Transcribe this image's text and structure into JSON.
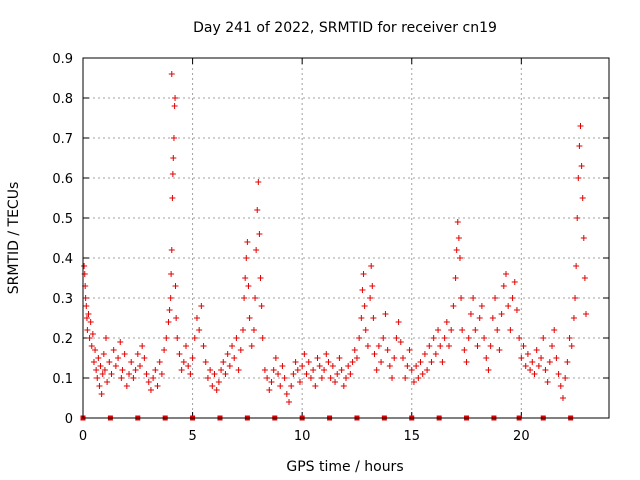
{
  "chart_data": {
    "type": "scatter",
    "title": "Day 241 of 2022, SRMTID for receiver cn19",
    "xlabel": "GPS time / hours",
    "ylabel": "SRMTID / TECUs",
    "xlim": [
      0,
      24
    ],
    "ylim": [
      0,
      0.9
    ],
    "xticks": [
      0,
      5,
      10,
      15,
      20
    ],
    "yticks": [
      0,
      0.1,
      0.2,
      0.3,
      0.4,
      0.5,
      0.6,
      0.7,
      0.8,
      0.9
    ],
    "xtick_labels": [
      "0",
      "5",
      "10",
      "15",
      "20"
    ],
    "ytick_labels": [
      "0",
      "0.1",
      "0.2",
      "0.3",
      "0.4",
      "0.5",
      "0.6",
      "0.7",
      "0.8",
      "0.9"
    ],
    "grid": true,
    "marker": "+",
    "color": "#e00000",
    "baseline_markers_x": [
      0,
      1.25,
      2.5,
      3.75,
      5.0,
      6.25,
      7.5,
      8.75,
      10.0,
      11.25,
      12.5,
      13.75,
      15.0,
      16.25,
      17.5,
      18.75,
      19.9,
      21.0,
      22.25
    ],
    "series": [
      {
        "name": "SRMTID",
        "points": [
          [
            0.05,
            0.38
          ],
          [
            0.08,
            0.36
          ],
          [
            0.1,
            0.33
          ],
          [
            0.12,
            0.3
          ],
          [
            0.15,
            0.28
          ],
          [
            0.18,
            0.25
          ],
          [
            0.2,
            0.22
          ],
          [
            0.25,
            0.26
          ],
          [
            0.3,
            0.2
          ],
          [
            0.35,
            0.24
          ],
          [
            0.4,
            0.18
          ],
          [
            0.45,
            0.21
          ],
          [
            0.5,
            0.14
          ],
          [
            0.55,
            0.17
          ],
          [
            0.6,
            0.12
          ],
          [
            0.65,
            0.1
          ],
          [
            0.7,
            0.15
          ],
          [
            0.75,
            0.08
          ],
          [
            0.8,
            0.13
          ],
          [
            0.85,
            0.06
          ],
          [
            0.9,
            0.11
          ],
          [
            0.95,
            0.16
          ],
          [
            1.0,
            0.12
          ],
          [
            1.05,
            0.2
          ],
          [
            1.1,
            0.09
          ],
          [
            1.2,
            0.14
          ],
          [
            1.3,
            0.11
          ],
          [
            1.4,
            0.17
          ],
          [
            1.5,
            0.13
          ],
          [
            1.6,
            0.15
          ],
          [
            1.7,
            0.19
          ],
          [
            1.75,
            0.1
          ],
          [
            1.8,
            0.12
          ],
          [
            1.9,
            0.16
          ],
          [
            2.0,
            0.08
          ],
          [
            2.1,
            0.11
          ],
          [
            2.2,
            0.14
          ],
          [
            2.3,
            0.1
          ],
          [
            2.4,
            0.12
          ],
          [
            2.5,
            0.16
          ],
          [
            2.6,
            0.13
          ],
          [
            2.7,
            0.18
          ],
          [
            2.8,
            0.15
          ],
          [
            2.9,
            0.11
          ],
          [
            3.0,
            0.09
          ],
          [
            3.1,
            0.07
          ],
          [
            3.2,
            0.1
          ],
          [
            3.3,
            0.12
          ],
          [
            3.4,
            0.08
          ],
          [
            3.5,
            0.14
          ],
          [
            3.6,
            0.11
          ],
          [
            3.7,
            0.17
          ],
          [
            3.8,
            0.2
          ],
          [
            3.9,
            0.24
          ],
          [
            3.95,
            0.27
          ],
          [
            4.0,
            0.3
          ],
          [
            4.02,
            0.36
          ],
          [
            4.05,
            0.42
          ],
          [
            4.08,
            0.55
          ],
          [
            4.1,
            0.61
          ],
          [
            4.12,
            0.65
          ],
          [
            4.15,
            0.7
          ],
          [
            4.18,
            0.78
          ],
          [
            4.2,
            0.8
          ],
          [
            4.05,
            0.86
          ],
          [
            4.22,
            0.33
          ],
          [
            4.25,
            0.25
          ],
          [
            4.3,
            0.2
          ],
          [
            4.4,
            0.16
          ],
          [
            4.5,
            0.12
          ],
          [
            4.6,
            0.14
          ],
          [
            4.7,
            0.18
          ],
          [
            4.8,
            0.13
          ],
          [
            4.9,
            0.11
          ],
          [
            5.0,
            0.15
          ],
          [
            5.1,
            0.2
          ],
          [
            5.2,
            0.25
          ],
          [
            5.3,
            0.22
          ],
          [
            5.4,
            0.28
          ],
          [
            5.5,
            0.18
          ],
          [
            5.6,
            0.14
          ],
          [
            5.7,
            0.1
          ],
          [
            5.8,
            0.12
          ],
          [
            5.9,
            0.08
          ],
          [
            6.0,
            0.11
          ],
          [
            6.1,
            0.07
          ],
          [
            6.2,
            0.09
          ],
          [
            6.3,
            0.12
          ],
          [
            6.4,
            0.14
          ],
          [
            6.5,
            0.11
          ],
          [
            6.6,
            0.16
          ],
          [
            6.7,
            0.13
          ],
          [
            6.8,
            0.18
          ],
          [
            6.9,
            0.15
          ],
          [
            7.0,
            0.2
          ],
          [
            7.1,
            0.12
          ],
          [
            7.2,
            0.17
          ],
          [
            7.3,
            0.22
          ],
          [
            7.35,
            0.3
          ],
          [
            7.4,
            0.35
          ],
          [
            7.45,
            0.4
          ],
          [
            7.5,
            0.44
          ],
          [
            7.55,
            0.33
          ],
          [
            7.6,
            0.25
          ],
          [
            7.7,
            0.18
          ],
          [
            7.8,
            0.22
          ],
          [
            7.85,
            0.3
          ],
          [
            7.9,
            0.42
          ],
          [
            7.95,
            0.52
          ],
          [
            8.0,
            0.59
          ],
          [
            8.05,
            0.46
          ],
          [
            8.1,
            0.35
          ],
          [
            8.15,
            0.28
          ],
          [
            8.2,
            0.2
          ],
          [
            8.3,
            0.12
          ],
          [
            8.4,
            0.1
          ],
          [
            8.5,
            0.07
          ],
          [
            8.6,
            0.09
          ],
          [
            8.7,
            0.12
          ],
          [
            8.8,
            0.15
          ],
          [
            8.9,
            0.11
          ],
          [
            9.0,
            0.08
          ],
          [
            9.1,
            0.13
          ],
          [
            9.2,
            0.1
          ],
          [
            9.3,
            0.06
          ],
          [
            9.4,
            0.04
          ],
          [
            9.5,
            0.08
          ],
          [
            9.6,
            0.11
          ],
          [
            9.7,
            0.14
          ],
          [
            9.8,
            0.12
          ],
          [
            9.9,
            0.09
          ],
          [
            10.0,
            0.13
          ],
          [
            10.1,
            0.16
          ],
          [
            10.2,
            0.11
          ],
          [
            10.3,
            0.14
          ],
          [
            10.4,
            0.1
          ],
          [
            10.5,
            0.12
          ],
          [
            10.6,
            0.08
          ],
          [
            10.7,
            0.15
          ],
          [
            10.8,
            0.13
          ],
          [
            10.9,
            0.1
          ],
          [
            11.0,
            0.12
          ],
          [
            11.1,
            0.16
          ],
          [
            11.2,
            0.14
          ],
          [
            11.3,
            0.1
          ],
          [
            11.4,
            0.13
          ],
          [
            11.5,
            0.09
          ],
          [
            11.6,
            0.11
          ],
          [
            11.7,
            0.15
          ],
          [
            11.8,
            0.12
          ],
          [
            11.9,
            0.08
          ],
          [
            12.0,
            0.1
          ],
          [
            12.1,
            0.13
          ],
          [
            12.2,
            0.11
          ],
          [
            12.3,
            0.14
          ],
          [
            12.4,
            0.17
          ],
          [
            12.5,
            0.15
          ],
          [
            12.6,
            0.2
          ],
          [
            12.7,
            0.25
          ],
          [
            12.75,
            0.32
          ],
          [
            12.8,
            0.36
          ],
          [
            12.85,
            0.28
          ],
          [
            12.9,
            0.22
          ],
          [
            13.0,
            0.18
          ],
          [
            13.1,
            0.3
          ],
          [
            13.15,
            0.38
          ],
          [
            13.2,
            0.33
          ],
          [
            13.25,
            0.25
          ],
          [
            13.3,
            0.16
          ],
          [
            13.4,
            0.12
          ],
          [
            13.5,
            0.18
          ],
          [
            13.6,
            0.14
          ],
          [
            13.7,
            0.2
          ],
          [
            13.8,
            0.26
          ],
          [
            13.9,
            0.17
          ],
          [
            14.0,
            0.13
          ],
          [
            14.1,
            0.1
          ],
          [
            14.2,
            0.15
          ],
          [
            14.3,
            0.2
          ],
          [
            14.4,
            0.24
          ],
          [
            14.5,
            0.19
          ],
          [
            14.6,
            0.15
          ],
          [
            14.7,
            0.1
          ],
          [
            14.8,
            0.13
          ],
          [
            14.9,
            0.17
          ],
          [
            15.0,
            0.12
          ],
          [
            15.1,
            0.09
          ],
          [
            15.2,
            0.13
          ],
          [
            15.3,
            0.1
          ],
          [
            15.4,
            0.14
          ],
          [
            15.5,
            0.11
          ],
          [
            15.6,
            0.16
          ],
          [
            15.7,
            0.12
          ],
          [
            15.8,
            0.18
          ],
          [
            15.9,
            0.14
          ],
          [
            16.0,
            0.2
          ],
          [
            16.1,
            0.16
          ],
          [
            16.2,
            0.22
          ],
          [
            16.3,
            0.18
          ],
          [
            16.4,
            0.14
          ],
          [
            16.5,
            0.2
          ],
          [
            16.6,
            0.24
          ],
          [
            16.7,
            0.18
          ],
          [
            16.8,
            0.22
          ],
          [
            16.9,
            0.28
          ],
          [
            17.0,
            0.35
          ],
          [
            17.05,
            0.42
          ],
          [
            17.1,
            0.49
          ],
          [
            17.15,
            0.45
          ],
          [
            17.2,
            0.4
          ],
          [
            17.25,
            0.3
          ],
          [
            17.3,
            0.22
          ],
          [
            17.4,
            0.17
          ],
          [
            17.5,
            0.14
          ],
          [
            17.6,
            0.2
          ],
          [
            17.7,
            0.26
          ],
          [
            17.8,
            0.3
          ],
          [
            17.9,
            0.22
          ],
          [
            18.0,
            0.18
          ],
          [
            18.1,
            0.25
          ],
          [
            18.2,
            0.28
          ],
          [
            18.3,
            0.2
          ],
          [
            18.4,
            0.15
          ],
          [
            18.5,
            0.12
          ],
          [
            18.6,
            0.18
          ],
          [
            18.7,
            0.25
          ],
          [
            18.8,
            0.3
          ],
          [
            18.9,
            0.22
          ],
          [
            19.0,
            0.17
          ],
          [
            19.1,
            0.26
          ],
          [
            19.2,
            0.33
          ],
          [
            19.3,
            0.36
          ],
          [
            19.4,
            0.28
          ],
          [
            19.5,
            0.22
          ],
          [
            19.6,
            0.3
          ],
          [
            19.7,
            0.34
          ],
          [
            19.8,
            0.27
          ],
          [
            19.9,
            0.2
          ],
          [
            20.0,
            0.15
          ],
          [
            20.1,
            0.18
          ],
          [
            20.2,
            0.13
          ],
          [
            20.3,
            0.16
          ],
          [
            20.4,
            0.12
          ],
          [
            20.5,
            0.14
          ],
          [
            20.6,
            0.11
          ],
          [
            20.7,
            0.17
          ],
          [
            20.8,
            0.13
          ],
          [
            20.9,
            0.15
          ],
          [
            21.0,
            0.2
          ],
          [
            21.1,
            0.12
          ],
          [
            21.2,
            0.09
          ],
          [
            21.3,
            0.14
          ],
          [
            21.4,
            0.18
          ],
          [
            21.5,
            0.22
          ],
          [
            21.6,
            0.15
          ],
          [
            21.7,
            0.11
          ],
          [
            21.8,
            0.08
          ],
          [
            21.9,
            0.05
          ],
          [
            22.0,
            0.1
          ],
          [
            22.1,
            0.14
          ],
          [
            22.2,
            0.2
          ],
          [
            22.3,
            0.18
          ],
          [
            22.4,
            0.25
          ],
          [
            22.45,
            0.3
          ],
          [
            22.5,
            0.38
          ],
          [
            22.55,
            0.5
          ],
          [
            22.6,
            0.6
          ],
          [
            22.65,
            0.68
          ],
          [
            22.7,
            0.73
          ],
          [
            22.75,
            0.63
          ],
          [
            22.8,
            0.55
          ],
          [
            22.85,
            0.45
          ],
          [
            22.9,
            0.35
          ],
          [
            22.95,
            0.26
          ]
        ]
      }
    ]
  }
}
